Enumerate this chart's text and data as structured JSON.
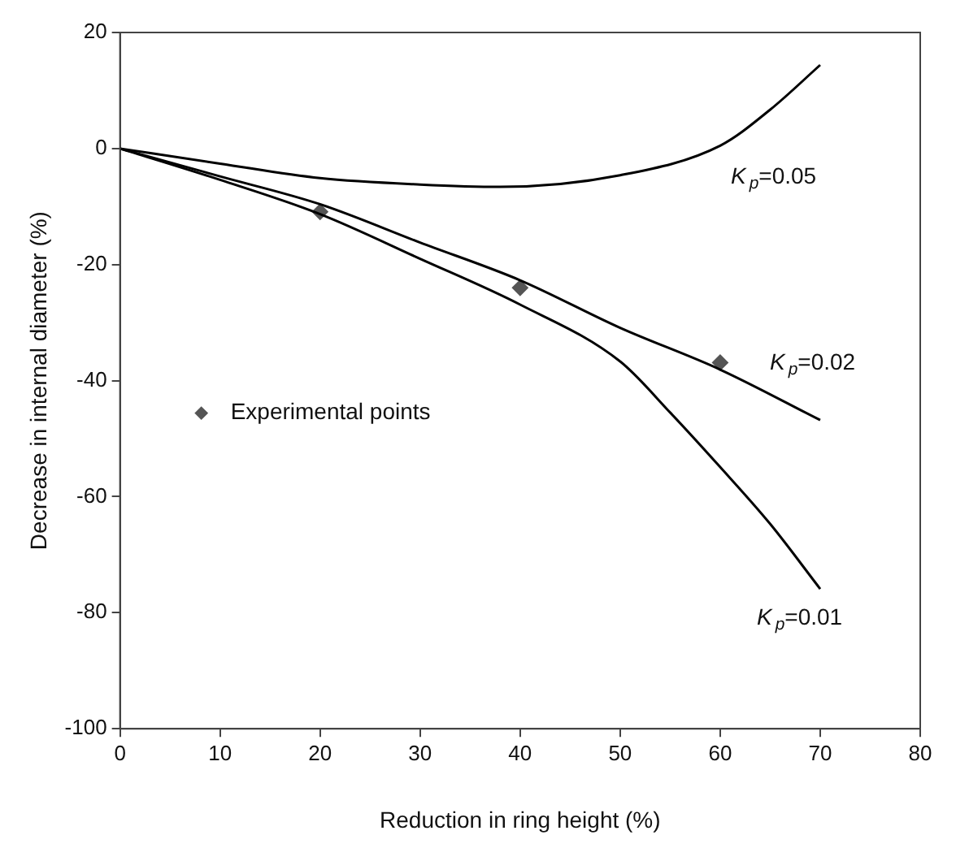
{
  "chart_data": {
    "type": "line",
    "xlabel": "Reduction in ring height (%)",
    "ylabel": "Decrease in internal diameter (%)",
    "xlim": [
      0,
      80
    ],
    "xticks": [
      0,
      10,
      20,
      30,
      40,
      50,
      60,
      70,
      80
    ],
    "ylim": [
      -100,
      20
    ],
    "yticks": [
      -100,
      -80,
      -60,
      -40,
      -20,
      0,
      20
    ],
    "grid": false,
    "legend": "left",
    "line_style": "solid",
    "series": [
      {
        "name": "K$_{p}$=0.05",
        "color": "#000000",
        "marker": "none",
        "x": [
          0,
          10,
          20,
          30,
          38,
          50,
          60,
          65,
          70
        ],
        "values": [
          0,
          -2.6,
          -5.1,
          -6.2,
          -6.6,
          -4.6,
          0.5,
          6.7,
          14.4
        ]
      },
      {
        "name": "K$_{p}$=0.02",
        "color": "#000000",
        "marker": "none",
        "x": [
          0,
          10,
          20,
          30,
          40,
          50,
          60,
          70
        ],
        "values": [
          0,
          -4.8,
          -9.6,
          -16.2,
          -22.7,
          -30.9,
          -38.1,
          -46.8
        ]
      },
      {
        "name": "K$_{p}$=0.01",
        "color": "#000000",
        "marker": "none",
        "x": [
          0,
          10,
          20,
          30,
          40,
          50,
          55,
          60,
          65,
          70
        ],
        "values": [
          0,
          -5.4,
          -11.3,
          -19,
          -26.9,
          -36.7,
          -45.5,
          -54.9,
          -64.7,
          -75.9
        ]
      },
      {
        "type": "scatter",
        "name": "Experimental points",
        "color": "#555555",
        "marker": "diamond",
        "x": [
          20,
          40,
          60
        ],
        "values": [
          -10.9,
          -24,
          -36.9
        ]
      }
    ]
  }
}
